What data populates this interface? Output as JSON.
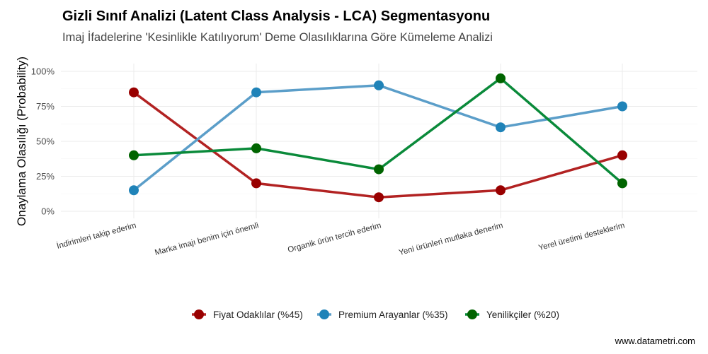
{
  "chart_data": {
    "type": "line",
    "title": "Gizli Sınıf Analizi (Latent Class Analysis - LCA) Segmentasyonu",
    "subtitle": "Imaj İfadelerine 'Kesinlikle Katılıyorum' Deme Olasılıklarına Göre Kümeleme Analizi",
    "xlabel": "",
    "ylabel": "Onaylama Olasılığı (Probability)",
    "categories": [
      "İndirimleri takip ederim",
      "Marka imajı benim için önemli",
      "Organik ürün tercih ederim",
      "Yeni ürünleri mutlaka denerim",
      "Yerel üretimi desteklerim"
    ],
    "y_ticks": [
      "0%",
      "25%",
      "50%",
      "75%",
      "100%"
    ],
    "ylim": [
      0,
      100
    ],
    "grid": true,
    "legend_position": "bottom",
    "series": [
      {
        "name": "Fiyat Odaklılar (%45)",
        "values": [
          85,
          20,
          10,
          15,
          40
        ],
        "line_color": "#b22222",
        "point_color": "#990000"
      },
      {
        "name": "Premium Arayanlar (%35)",
        "values": [
          15,
          85,
          90,
          60,
          75
        ],
        "line_color": "#5b9ec9",
        "point_color": "#1f83b8"
      },
      {
        "name": "Yenilikçiler (%20)",
        "values": [
          40,
          45,
          30,
          95,
          20
        ],
        "line_color": "#0a8a3a",
        "point_color": "#006400"
      }
    ],
    "caption": "www.datametri.com"
  }
}
